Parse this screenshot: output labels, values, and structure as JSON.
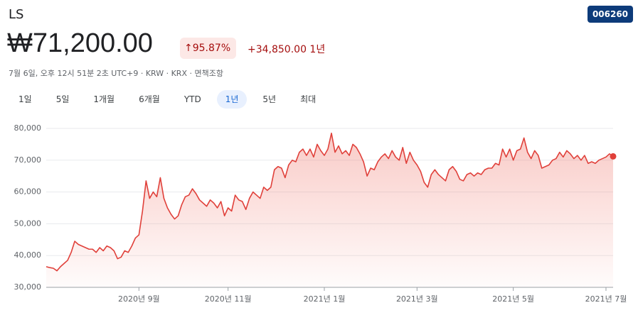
{
  "header": {
    "name": "LS",
    "code": "006260",
    "price": "₩71,200.00",
    "change_percent": "95.87%",
    "change": "+34,850.00 1년",
    "subtitle": "7월 6일, 오후 12시 51분 2초 UTC+9 · KRW · KRX · 면책조항"
  },
  "ranges": [
    "1일",
    "5일",
    "1개월",
    "6개월",
    "YTD",
    "1년",
    "5년",
    "최대"
  ],
  "chart_data": {
    "type": "line",
    "categories": [
      null,
      null,
      null,
      null,
      null,
      null,
      null,
      null,
      null,
      null,
      null,
      null,
      null,
      null,
      null,
      null,
      null,
      null,
      null,
      null,
      null,
      null,
      null,
      null,
      null,
      null,
      "2020년 9월",
      null,
      null,
      null,
      null,
      null,
      null,
      null,
      null,
      null,
      null,
      null,
      null,
      null,
      null,
      null,
      null,
      null,
      null,
      null,
      null,
      null,
      null,
      null,
      null,
      "2020년 11월",
      null,
      null,
      null,
      null,
      null,
      null,
      null,
      null,
      null,
      null,
      null,
      null,
      null,
      null,
      null,
      null,
      null,
      null,
      null,
      null,
      null,
      null,
      null,
      null,
      null,
      null,
      "2021년 1월",
      null,
      null,
      null,
      null,
      null,
      null,
      null,
      null,
      null,
      null,
      null,
      null,
      null,
      null,
      null,
      null,
      null,
      null,
      null,
      null,
      null,
      null,
      null,
      null,
      null,
      "2021년 3월",
      null,
      null,
      null,
      null,
      null,
      null,
      null,
      null,
      null,
      null,
      null,
      null,
      null,
      null,
      null,
      null,
      null,
      null,
      null,
      null,
      null,
      null,
      null,
      null,
      null,
      null,
      "2021년 5월",
      null,
      null,
      null,
      null,
      null,
      null,
      null,
      null,
      null,
      null,
      null,
      null,
      null,
      null,
      null,
      null,
      null,
      null,
      null,
      null,
      null,
      null,
      null,
      null,
      null,
      "2021년 7월",
      null,
      null
    ],
    "values": [
      36500,
      36200,
      36000,
      35200,
      36500,
      37500,
      38500,
      41000,
      44500,
      43500,
      43000,
      42500,
      42000,
      42000,
      41000,
      42500,
      41500,
      43000,
      42500,
      41500,
      39000,
      39500,
      41500,
      41000,
      43000,
      45500,
      46500,
      54000,
      63500,
      58000,
      60000,
      58500,
      64500,
      58000,
      55000,
      53000,
      51500,
      52500,
      56000,
      58500,
      59000,
      61000,
      59500,
      57500,
      56500,
      55500,
      57500,
      56500,
      55000,
      57000,
      52500,
      55000,
      54000,
      59000,
      57500,
      57000,
      54500,
      58000,
      60000,
      59000,
      58000,
      61500,
      60500,
      61500,
      67000,
      68000,
      67500,
      64500,
      68500,
      70000,
      69500,
      72500,
      73500,
      71500,
      73500,
      71000,
      75000,
      73000,
      71500,
      73500,
      78500,
      72500,
      74500,
      72000,
      73000,
      71500,
      75000,
      74000,
      72000,
      69500,
      65000,
      67500,
      67000,
      69500,
      71000,
      72000,
      70500,
      73000,
      71000,
      70000,
      74000,
      69000,
      72500,
      70000,
      68500,
      66500,
      63000,
      61500,
      65500,
      67000,
      65500,
      64500,
      63500,
      67000,
      68000,
      66500,
      64000,
      63500,
      65500,
      66000,
      65000,
      66000,
      65500,
      67000,
      67500,
      67500,
      69000,
      68500,
      73500,
      71000,
      73500,
      70000,
      73000,
      73500,
      77000,
      72500,
      70500,
      73000,
      71500,
      67500,
      68000,
      68500,
      70000,
      70500,
      72500,
      71000,
      73000,
      72000,
      70500,
      71500,
      70000,
      71500,
      69000,
      69500,
      69000,
      70000,
      70500,
      71000,
      72000,
      71200
    ],
    "color": "#e0403a",
    "ylim": [
      30000,
      80000
    ],
    "yticks": [
      {
        "value": 30000,
        "label": "30,000"
      },
      {
        "value": 40000,
        "label": "40,000"
      },
      {
        "value": 50000,
        "label": "50,000"
      },
      {
        "value": 60000,
        "label": "60,000"
      },
      {
        "value": 70000,
        "label": "70,000"
      },
      {
        "value": 80000,
        "label": "80,000"
      }
    ],
    "grid": true
  }
}
